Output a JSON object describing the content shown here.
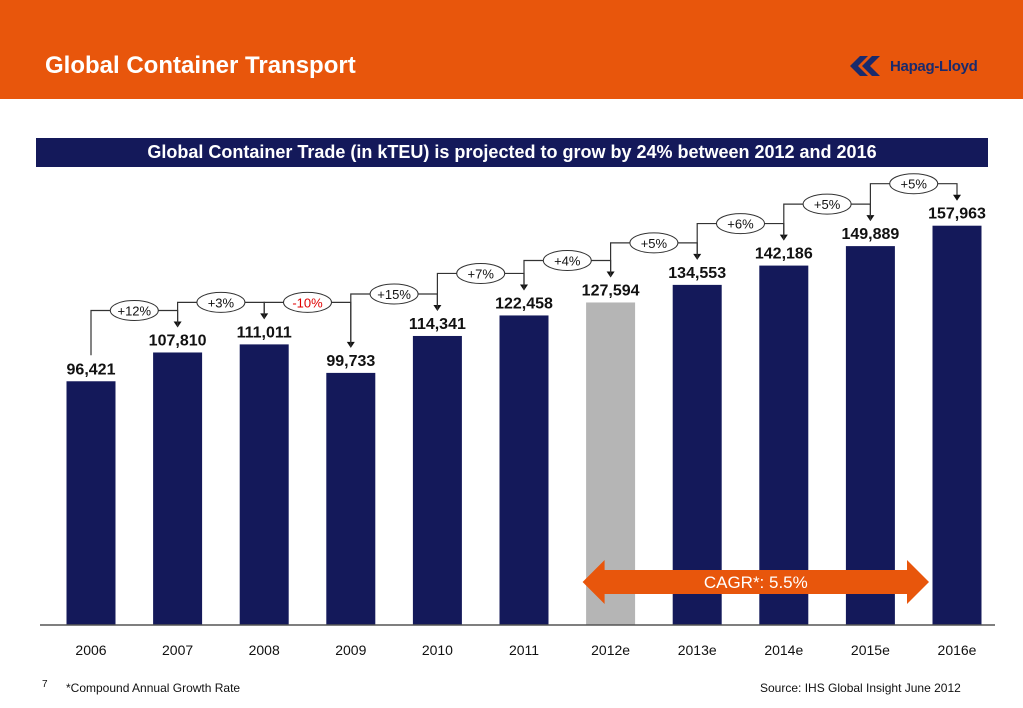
{
  "title": "Global Container Transport",
  "logo": {
    "text": "Hapag-Lloyd",
    "icon": "hapag-lloyd-logo-icon",
    "color": "#1a2a6c"
  },
  "banner": "Global Container Trade (in kTEU) is projected to grow by 24% between 2012 and 2016",
  "colors": {
    "header": "#e8560c",
    "bar": "#14195a",
    "bar_highlight": "#b5b5b5",
    "banner": "#14195a",
    "negative": "#e00000",
    "cagr_arrow": "#e8560c"
  },
  "chart_data": {
    "type": "bar",
    "categories": [
      "2006",
      "2007",
      "2008",
      "2009",
      "2010",
      "2011",
      "2012e",
      "2013e",
      "2014e",
      "2015e",
      "2016e"
    ],
    "values": [
      96421,
      107810,
      111011,
      99733,
      114341,
      122458,
      127594,
      134553,
      142186,
      149889,
      157963
    ],
    "value_labels": [
      "96,421",
      "107,810",
      "111,011",
      "99,733",
      "114,341",
      "122,458",
      "127,594",
      "134,553",
      "142,186",
      "149,889",
      "157,963"
    ],
    "highlight_index": 6,
    "growth_labels": [
      "+12%",
      "+3%",
      "-10%",
      "+15%",
      "+7%",
      "+4%",
      "+5%",
      "+6%",
      "+5%",
      "+5%"
    ],
    "negative_growth_index": 2,
    "cagr_label": "CAGR*: 5.5%",
    "cagr_span": [
      "2012e",
      "2016e"
    ],
    "ylim": [
      0,
      180000
    ],
    "grid": false,
    "legend": "none"
  },
  "footer": {
    "page_number": "7",
    "footnote": "*Compound Annual Growth Rate",
    "source": "Source: IHS Global Insight June 2012"
  }
}
